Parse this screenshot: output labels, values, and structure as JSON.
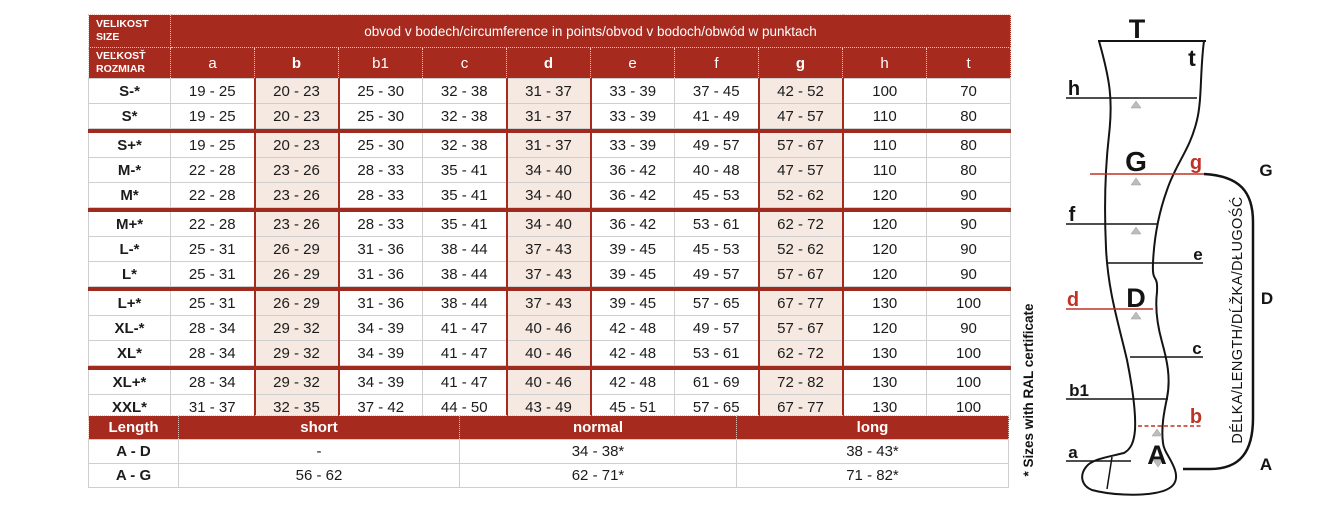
{
  "colors": {
    "table_header_red": "#a72a1e",
    "group_divider_red": "#9f2b1f",
    "highlight_pink": "#f5e9e1",
    "diagram_accent_red": "#bf3327"
  },
  "size_table": {
    "corner_row1": [
      "VELIKOST",
      "SIZE"
    ],
    "corner_row2": [
      "VEĽKOSŤ",
      "ROZMIAR"
    ],
    "span_header": "obvod v bodech/circumference in points/obvod v bodoch/obwód w punktach",
    "columns": [
      "a",
      "b",
      "b1",
      "c",
      "d",
      "e",
      "f",
      "g",
      "h",
      "t"
    ],
    "bold_columns": [
      "b",
      "d",
      "g"
    ],
    "rows": [
      {
        "size": "S-*",
        "group_start": false,
        "values": [
          "19 - 25",
          "20 - 23",
          "25 - 30",
          "32 - 38",
          "31 - 37",
          "33 - 39",
          "37 - 45",
          "42 - 52",
          "100",
          "70"
        ]
      },
      {
        "size": "S*",
        "group_start": false,
        "values": [
          "19 - 25",
          "20 - 23",
          "25 - 30",
          "32 - 38",
          "31 - 37",
          "33 - 39",
          "41 - 49",
          "47 - 57",
          "110",
          "80"
        ]
      },
      {
        "size": "S+*",
        "group_start": true,
        "values": [
          "19 - 25",
          "20 - 23",
          "25 - 30",
          "32 - 38",
          "31 - 37",
          "33 - 39",
          "49 - 57",
          "57 - 67",
          "110",
          "80"
        ]
      },
      {
        "size": "M-*",
        "group_start": false,
        "values": [
          "22 - 28",
          "23 - 26",
          "28 - 33",
          "35 - 41",
          "34 - 40",
          "36 - 42",
          "40 - 48",
          "47 - 57",
          "110",
          "80"
        ]
      },
      {
        "size": "M*",
        "group_start": false,
        "values": [
          "22 - 28",
          "23 - 26",
          "28 - 33",
          "35 - 41",
          "34 - 40",
          "36 - 42",
          "45 - 53",
          "52 - 62",
          "120",
          "90"
        ]
      },
      {
        "size": "M+*",
        "group_start": true,
        "values": [
          "22 - 28",
          "23 - 26",
          "28 - 33",
          "35 - 41",
          "34 - 40",
          "36 - 42",
          "53 - 61",
          "62 - 72",
          "120",
          "90"
        ]
      },
      {
        "size": "L-*",
        "group_start": false,
        "values": [
          "25 - 31",
          "26 - 29",
          "31 - 36",
          "38 - 44",
          "37 - 43",
          "39 - 45",
          "45 - 53",
          "52 - 62",
          "120",
          "90"
        ]
      },
      {
        "size": "L*",
        "group_start": false,
        "values": [
          "25 - 31",
          "26 - 29",
          "31 - 36",
          "38 - 44",
          "37 - 43",
          "39 - 45",
          "49 - 57",
          "57 - 67",
          "120",
          "90"
        ]
      },
      {
        "size": "L+*",
        "group_start": true,
        "values": [
          "25 - 31",
          "26 - 29",
          "31 - 36",
          "38 - 44",
          "37 - 43",
          "39 - 45",
          "57 - 65",
          "67 - 77",
          "130",
          "100"
        ]
      },
      {
        "size": "XL-*",
        "group_start": false,
        "values": [
          "28 - 34",
          "29 - 32",
          "34 - 39",
          "41 - 47",
          "40 - 46",
          "42 - 48",
          "49 - 57",
          "57 - 67",
          "120",
          "90"
        ]
      },
      {
        "size": "XL*",
        "group_start": false,
        "values": [
          "28 - 34",
          "29 - 32",
          "34 - 39",
          "41 - 47",
          "40 - 46",
          "42 - 48",
          "53 - 61",
          "62 - 72",
          "130",
          "100"
        ]
      },
      {
        "size": "XL+*",
        "group_start": true,
        "values": [
          "28 - 34",
          "29 - 32",
          "34 - 39",
          "41 - 47",
          "40 - 46",
          "42 - 48",
          "61 - 69",
          "72 - 82",
          "130",
          "100"
        ]
      },
      {
        "size": "XXL*",
        "group_start": false,
        "values": [
          "31 - 37",
          "32 - 35",
          "37 - 42",
          "44 - 50",
          "43 - 49",
          "45 - 51",
          "57 - 65",
          "67 - 77",
          "130",
          "100"
        ]
      }
    ]
  },
  "length_table": {
    "header": [
      "Length",
      "short",
      "normal",
      "long"
    ],
    "rows": [
      {
        "label": "A - D",
        "values": [
          "-",
          "34 - 38*",
          "38 - 43*"
        ]
      },
      {
        "label": "A - G",
        "values": [
          "56 - 62",
          "62 - 71*",
          "71 - 82*"
        ]
      }
    ]
  },
  "footnote": "* Sizes with RAL certificate",
  "diagram": {
    "labels": {
      "T": "T",
      "t": "t",
      "h": "h",
      "G": "G",
      "g": "g",
      "f": "f",
      "e": "e",
      "d": "d",
      "D": "D",
      "c": "c",
      "b1": "b1",
      "b": "b",
      "a": "a",
      "A": "A",
      "brace_top": "G",
      "brace_mid": "D",
      "brace_bottom": "A"
    },
    "length_axis_text": "DÉLKA/LENGTH/DĹŽKA/DŁUGOŚĆ"
  }
}
